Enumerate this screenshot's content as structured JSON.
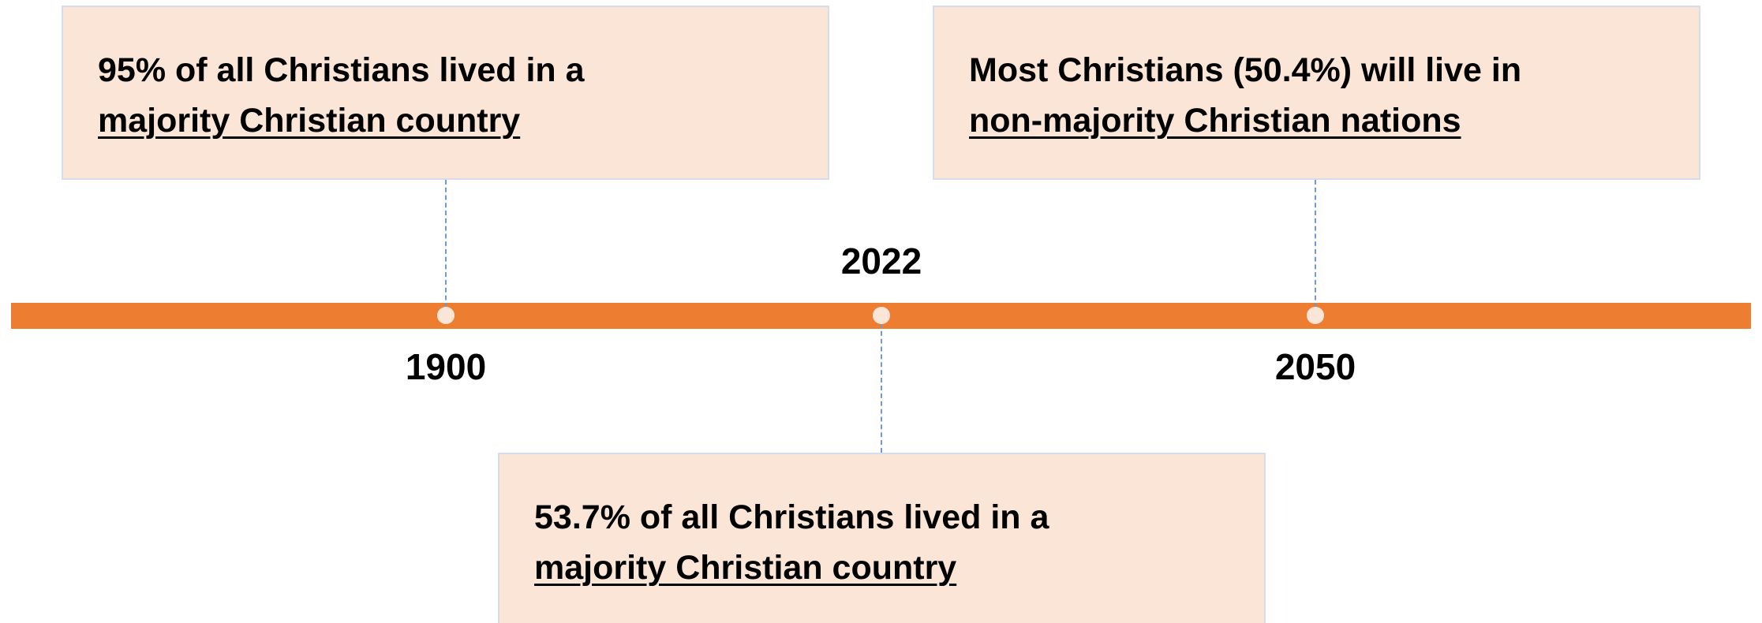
{
  "events": [
    {
      "year": "1900",
      "text": "95% of all Christians lived in a",
      "emphasis": "majority Christian country"
    },
    {
      "year": "2022",
      "text": "53.7% of all Christians lived in a",
      "emphasis": "majority Christian country"
    },
    {
      "year": "2050",
      "text": "Most Christians (50.4%) will live in",
      "emphasis": "non-majority Christian nations"
    }
  ]
}
